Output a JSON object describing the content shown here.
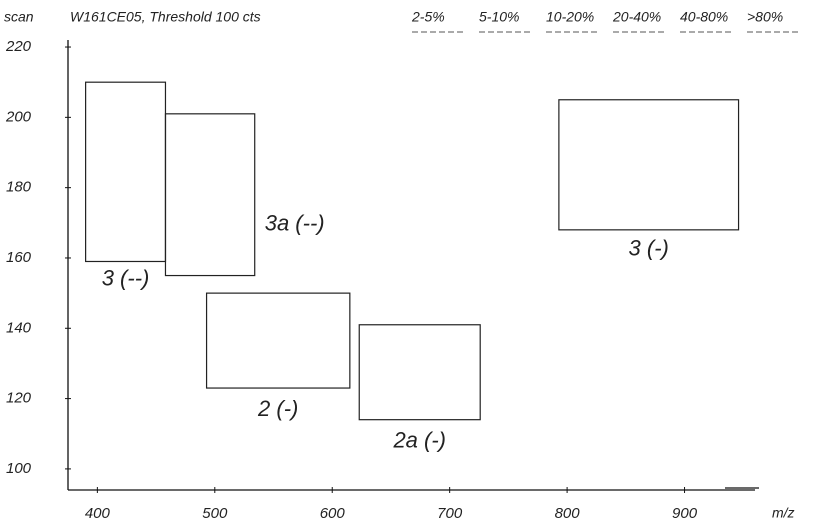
{
  "chart_data": {
    "type": "regions",
    "title": "W161CE05, Threshold 100 cts",
    "y_label": "scan",
    "x_label": "m/z",
    "legend": [
      "2-5%",
      "5-10%",
      "10-20%",
      "20-40%",
      "40-80%",
      ">80%"
    ],
    "xlim": [
      375,
      960
    ],
    "ylim": [
      94,
      222
    ],
    "xticks": [
      400,
      500,
      600,
      700,
      800,
      900
    ],
    "yticks": [
      100,
      120,
      140,
      160,
      180,
      200,
      220
    ],
    "color": "#222",
    "regions": [
      {
        "label": "3 (--)",
        "x": [
          390,
          458
        ],
        "y": [
          159,
          210
        ]
      },
      {
        "label": "3a (--)",
        "x": [
          458,
          534
        ],
        "y": [
          155,
          201
        ]
      },
      {
        "label": "2 (-)",
        "x": [
          493,
          615
        ],
        "y": [
          123,
          150
        ]
      },
      {
        "label": "2a (-)",
        "x": [
          623,
          726
        ],
        "y": [
          114,
          141
        ]
      },
      {
        "label": "3 (-)",
        "x": [
          793,
          946
        ],
        "y": [
          168,
          205
        ]
      }
    ]
  }
}
